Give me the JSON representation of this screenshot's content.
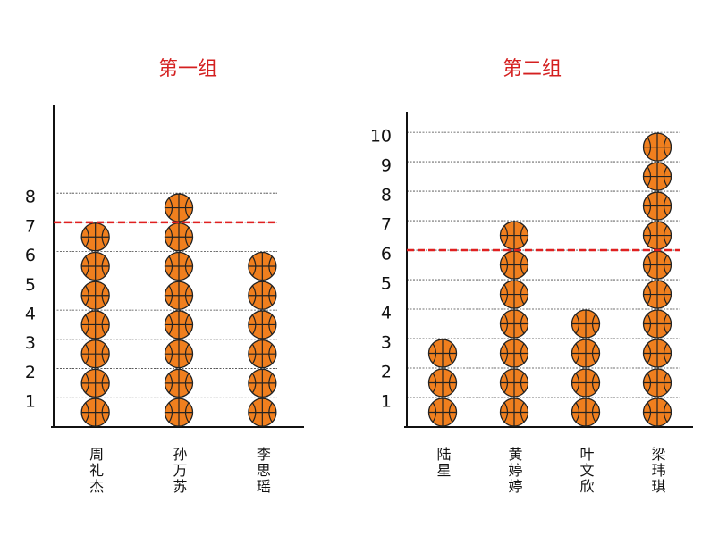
{
  "chart_data": [
    {
      "type": "pictograph",
      "title": "第一组",
      "categories": [
        "周礼杰",
        "孙万苏",
        "李思瑶"
      ],
      "values": [
        7,
        8,
        6
      ],
      "ylim": [
        0,
        11
      ],
      "yticks": [
        1,
        2,
        3,
        4,
        5,
        6,
        7,
        8
      ],
      "grid": true,
      "reference_line": 7,
      "reference_color": "#e02020",
      "color": "#f07f1e"
    },
    {
      "type": "pictograph",
      "title": "第二组",
      "categories": [
        "陆星",
        "黄婷婷",
        "叶文欣",
        "梁玮琪"
      ],
      "values": [
        3,
        7,
        4,
        10
      ],
      "ylim": [
        0,
        10.7
      ],
      "yticks": [
        1,
        2,
        3,
        4,
        5,
        6,
        7,
        8,
        9,
        10
      ],
      "grid": true,
      "reference_line": 6,
      "reference_color": "#e02020",
      "color": "#f07f1e"
    }
  ]
}
